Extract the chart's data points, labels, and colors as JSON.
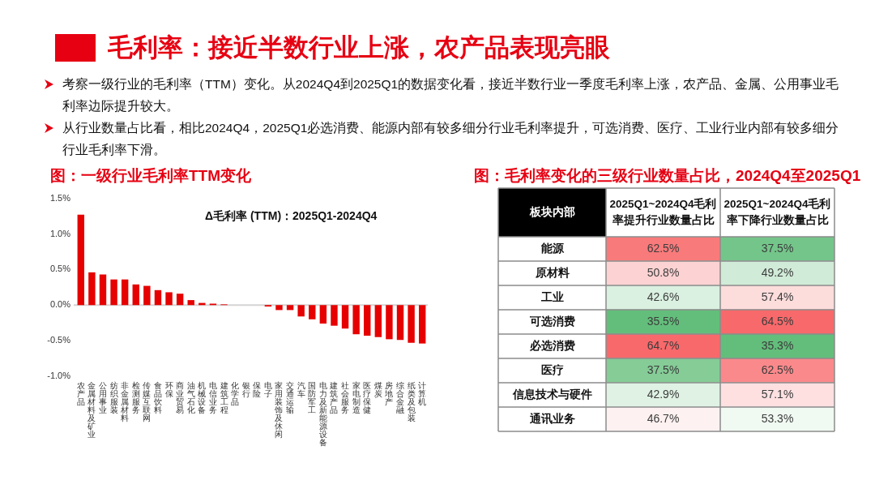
{
  "chart_data": [
    {
      "type": "other",
      "title": "毛利率：接近半数行业上涨，农产品表现亮眼",
      "annotations": [
        "考察一级行业的毛利率（TTM）变化。从2024Q4到2025Q1的数据变化看，接近半数行业一季度毛利率上涨，农产品、金属、公用事业毛利率边际提升较大。",
        "从行业数量占比看，相比2024Q4，2025Q1必选消费、能源内部有较多细分行业毛利率提升，可选消费、医疗、工业行业内部有较多细分行业毛利率下滑。"
      ]
    },
    {
      "type": "bar",
      "title": "图：一级行业毛利率TTM变化",
      "subtitle": "Δ毛利率 (TTM)：2025Q1-2024Q4",
      "categories": [
        "农产品",
        "金属材料及矿业",
        "公用事业",
        "纺织服装",
        "非金属材料",
        "检测服务",
        "传媒互联网",
        "食品饮料",
        "环保",
        "商业贸易",
        "油气石化",
        "机械设备",
        "电信业务",
        "建筑工程",
        "化学品",
        "银行",
        "保险",
        "电子",
        "家用装饰及休闲",
        "交通运输",
        "汽车",
        "国防军工",
        "电力及新能源设备",
        "建筑产品",
        "社会服务",
        "家电制造",
        "医疗保健",
        "煤炭",
        "房地产",
        "综合金融",
        "纸类及包装",
        "计算机"
      ],
      "values": [
        1.27,
        0.46,
        0.43,
        0.36,
        0.36,
        0.29,
        0.27,
        0.21,
        0.18,
        0.16,
        0.07,
        0.03,
        0.02,
        0.01,
        0,
        0,
        0,
        -0.02,
        -0.07,
        -0.07,
        -0.16,
        -0.2,
        -0.26,
        -0.29,
        -0.33,
        -0.41,
        -0.43,
        -0.45,
        -0.48,
        -0.49,
        -0.53,
        -0.54
      ],
      "color": "#e60000",
      "ylim": [
        -1,
        1.5
      ],
      "yticks": [
        {
          "value": -1,
          "label": "-1.0%"
        },
        {
          "value": -0.5,
          "label": "-0.5%"
        },
        {
          "value": 0,
          "label": "0.0%"
        },
        {
          "value": 0.5,
          "label": "0.5%"
        },
        {
          "value": 1,
          "label": "1.0%"
        },
        {
          "value": 1.5,
          "label": "1.5%"
        }
      ]
    },
    {
      "type": "heatmap",
      "title": "图：毛利率变化的三级行业数量占比，2024Q4至2025Q1",
      "ylabel": "板块内部",
      "categories": [
        "2025Q1~2024Q4毛利率提升行业数量占比",
        "2025Q1~2024Q4毛利率下降行业数量占比"
      ],
      "y_categories": [
        "能源",
        "原材料",
        "工业",
        "可选消费",
        "必选消费",
        "医疗",
        "信息技术与硬件",
        "通讯业务"
      ],
      "cells": [
        [
          62.5,
          37.5
        ],
        [
          50.8,
          49.2
        ],
        [
          42.6,
          57.4
        ],
        [
          35.5,
          64.5
        ],
        [
          64.7,
          35.3
        ],
        [
          37.5,
          62.5
        ],
        [
          42.9,
          57.1
        ],
        [
          46.7,
          53.3
        ]
      ],
      "cell_labels": [
        [
          "62.5%",
          "37.5%"
        ],
        [
          "50.8%",
          "49.2%"
        ],
        [
          "42.6%",
          "57.4%"
        ],
        [
          "35.5%",
          "64.5%"
        ],
        [
          "64.7%",
          "35.3%"
        ],
        [
          "37.5%",
          "62.5%"
        ],
        [
          "42.9%",
          "57.1%"
        ],
        [
          "46.7%",
          "53.3%"
        ]
      ]
    }
  ]
}
